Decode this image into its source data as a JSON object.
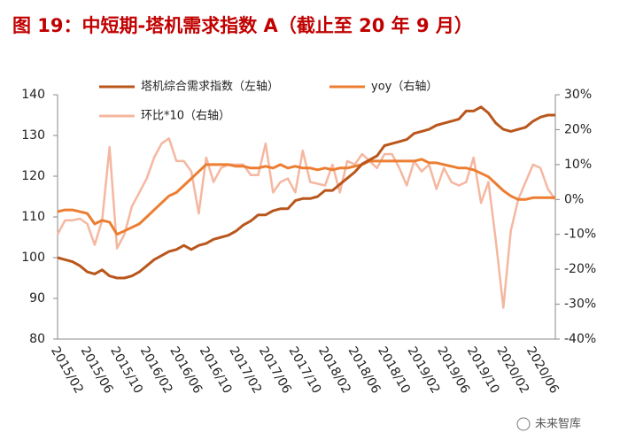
{
  "chart_data": {
    "type": "line",
    "title": "图 19：中短期-塔机需求指数 A（截止至 20 年 9 月）",
    "watermark": "未来智库",
    "categories": [
      "2015/02",
      null,
      null,
      null,
      "2015/06",
      null,
      null,
      null,
      "2015/10",
      null,
      null,
      null,
      "2016/02",
      null,
      null,
      null,
      "2016/06",
      null,
      null,
      null,
      "2016/10",
      null,
      null,
      null,
      "2017/02",
      null,
      null,
      null,
      "2017/06",
      null,
      null,
      null,
      "2017/10",
      null,
      null,
      null,
      "2018/02",
      null,
      null,
      null,
      "2018/06",
      null,
      null,
      null,
      "2018/10",
      null,
      null,
      null,
      "2019/02",
      null,
      null,
      null,
      "2019/06",
      null,
      null,
      null,
      "2019/10",
      null,
      null,
      null,
      "2020/02",
      null,
      null,
      null,
      "2020/06",
      null,
      null,
      null
    ],
    "series": [
      {
        "name": "塔机综合需求指数（左轴）",
        "color": "#b9561c",
        "axis": "y",
        "values": [
          100,
          99.5,
          99,
          98,
          96.5,
          96,
          97,
          95.5,
          95,
          95,
          95.5,
          96.5,
          98,
          99.5,
          100.5,
          101.5,
          102,
          103,
          102,
          103,
          103.5,
          104.5,
          105,
          105.5,
          106.5,
          108,
          109,
          110.5,
          110.5,
          111.5,
          112,
          112,
          114,
          114.5,
          114.5,
          115,
          116.5,
          116.5,
          118,
          119.5,
          121,
          123,
          124,
          125,
          127.5,
          128,
          128.5,
          129,
          130.5,
          131,
          131.5,
          132.5,
          133,
          133.5,
          134,
          136,
          136,
          137,
          135.5,
          133,
          131.5,
          131,
          131.5,
          132,
          133.5,
          134.5,
          135,
          135
        ]
      },
      {
        "name": "yoy（右轴）",
        "color": "#ec7d31",
        "axis": "y2",
        "values": [
          -3.5,
          -3,
          -3,
          -3.5,
          -4,
          -7,
          -6,
          -6.5,
          -10,
          -9,
          -8,
          -7,
          -5,
          -3,
          -1,
          1,
          2,
          4,
          6,
          8,
          10,
          10,
          10,
          10,
          9.5,
          9.5,
          9,
          9,
          9.5,
          9,
          10,
          9,
          9.5,
          9,
          9,
          8.5,
          9,
          8.5,
          9,
          9,
          9.5,
          10,
          11,
          11,
          11,
          11,
          11,
          11,
          11,
          11.5,
          10.5,
          10.5,
          10,
          9.5,
          9,
          9,
          8.5,
          7.5,
          6.5,
          4.5,
          2.5,
          1,
          0,
          0,
          0.5,
          0.5,
          0.5,
          0.5
        ]
      },
      {
        "name": "环比*10（右轴）",
        "color": "#f5b7a0",
        "axis": "y2",
        "values": [
          -10,
          -6,
          -6,
          -5.5,
          -7,
          -13,
          -6,
          15,
          -14,
          -10,
          -2,
          2,
          6,
          12,
          16,
          17.5,
          11,
          11,
          8,
          -4,
          12,
          5,
          9,
          10,
          10,
          10,
          7,
          7,
          16,
          2,
          5,
          6,
          2,
          14,
          5,
          4.5,
          4,
          10,
          2,
          11,
          10,
          13,
          11,
          9,
          13,
          13,
          9,
          4,
          11,
          8,
          10,
          3,
          9,
          5,
          4,
          5,
          12,
          -1,
          5,
          -12,
          -31,
          -9,
          0,
          5,
          10,
          9,
          3,
          0
        ]
      }
    ],
    "ylim": [
      80,
      140
    ],
    "yticks": [
      80,
      90,
      100,
      110,
      120,
      130,
      140
    ],
    "y2lim": [
      -40,
      30
    ],
    "y2ticks": [
      {
        "value": -40,
        "label": "-40%"
      },
      {
        "value": -30,
        "label": "-30%"
      },
      {
        "value": -20,
        "label": "-20%"
      },
      {
        "value": -10,
        "label": "-10%"
      },
      {
        "value": 0,
        "label": "0%"
      },
      {
        "value": 10,
        "label": "10%"
      },
      {
        "value": 20,
        "label": "20%"
      },
      {
        "value": 30,
        "label": "30%"
      }
    ],
    "grid": false
  }
}
